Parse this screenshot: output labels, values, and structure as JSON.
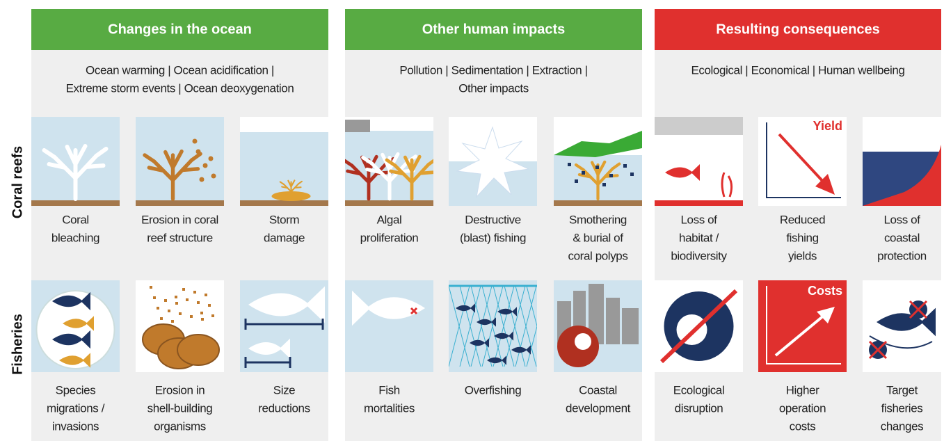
{
  "row_labels": [
    "Coral reefs",
    "Fisheries"
  ],
  "columns": [
    {
      "title": "Changes in the ocean",
      "subtitle": [
        "Ocean warming | Ocean acidification |",
        "Extreme storm events | Ocean deoxygenation"
      ],
      "rows": [
        [
          {
            "caption": [
              "Coral",
              "bleaching"
            ]
          },
          {
            "caption": [
              "Erosion in coral",
              "reef structure"
            ]
          },
          {
            "caption": [
              "Storm",
              "damage"
            ]
          }
        ],
        [
          {
            "caption": [
              "Species",
              "migrations /",
              "invasions"
            ]
          },
          {
            "caption": [
              "Erosion in",
              "shell-building",
              "organisms"
            ]
          },
          {
            "caption": [
              "Size",
              "reductions"
            ]
          }
        ]
      ]
    },
    {
      "title": "Other human impacts",
      "subtitle": [
        "Pollution | Sedimentation | Extraction |",
        "Other impacts"
      ],
      "rows": [
        [
          {
            "caption": [
              "Algal",
              "proliferation"
            ]
          },
          {
            "caption": [
              "Destructive",
              "(blast) fishing"
            ]
          },
          {
            "caption": [
              "Smothering",
              "& burial of",
              "coral polyps"
            ]
          }
        ],
        [
          {
            "caption": [
              "Fish",
              "mortalities"
            ]
          },
          {
            "caption": [
              "Overfishing"
            ]
          },
          {
            "caption": [
              "Coastal",
              "development"
            ]
          }
        ]
      ]
    },
    {
      "title": "Resulting consequences",
      "subtitle": [
        "Ecological | Economical | Human wellbeing"
      ],
      "rows": [
        [
          {
            "caption": [
              "Loss of",
              "habitat /",
              "biodiversity"
            ]
          },
          {
            "caption": [
              "Reduced",
              "fishing",
              "yields"
            ],
            "icon_label": "Yield"
          },
          {
            "caption": [
              "Loss of",
              "coastal",
              "protection"
            ]
          }
        ],
        [
          {
            "caption": [
              "Ecological",
              "disruption"
            ]
          },
          {
            "caption": [
              "Higher",
              "operation",
              "costs"
            ],
            "icon_label": "Costs"
          },
          {
            "caption": [
              "Target",
              "fisheries",
              "changes"
            ]
          }
        ]
      ]
    }
  ]
}
